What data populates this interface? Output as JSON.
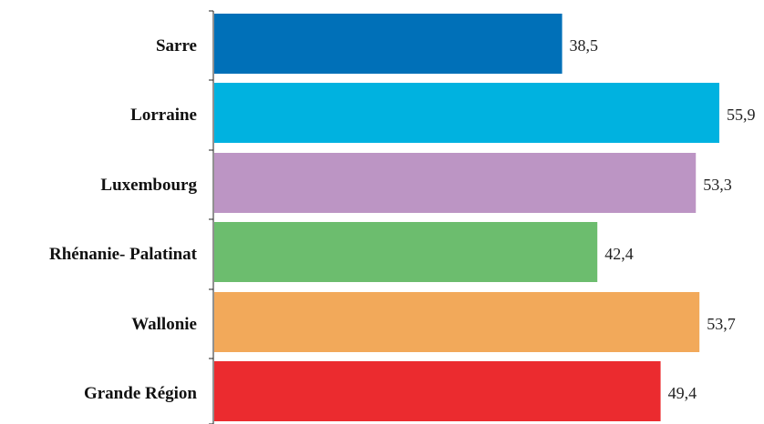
{
  "chart_data": {
    "type": "bar",
    "orientation": "horizontal",
    "categories": [
      "Sarre",
      "Lorraine",
      "Luxembourg",
      "Rhénanie- Palatinat",
      "Wallonie",
      "Grande Région"
    ],
    "values": [
      38.5,
      55.9,
      53.3,
      42.4,
      53.7,
      49.4
    ],
    "value_labels": [
      "38,5",
      "55,9",
      "53,3",
      "42,4",
      "53,7",
      "49,4"
    ],
    "colors": [
      "#0070b8",
      "#00b2e0",
      "#bc95c4",
      "#6cbd6e",
      "#f2a95a",
      "#eb2b2f"
    ],
    "xlim": [
      0,
      56
    ],
    "grid": false,
    "legend": "none"
  }
}
